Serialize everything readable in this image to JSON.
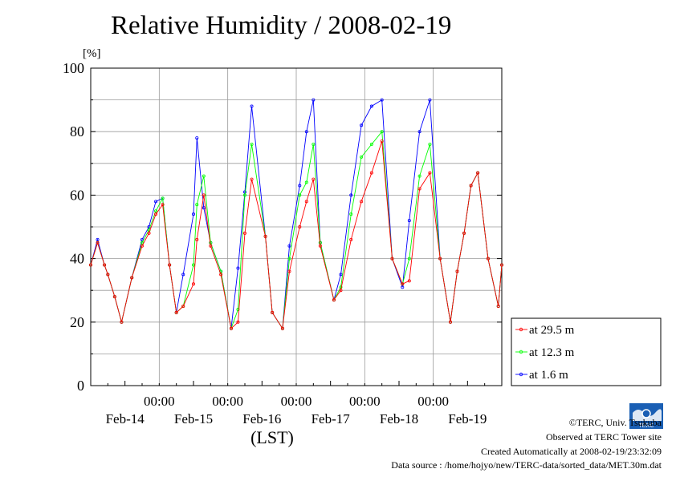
{
  "title": "Relative Humidity / 2008-02-19",
  "footer": {
    "credit": "©TERC, Univ. Tsukuba",
    "observed": "Observed at TERC Tower site",
    "created": "Created Automatically at 2008-02-19/23:32:09",
    "source": "Data source : /home/hojyo/new/TERC-data/sorted_data/MET.30m.dat"
  },
  "logo_text": "TERC",
  "chart_data": {
    "type": "line",
    "title": "Relative Humidity / 2008-02-19",
    "ylabel": "[%]",
    "xlabel": "(LST)",
    "ylim": [
      0,
      100
    ],
    "yticks": [
      0,
      20,
      40,
      60,
      80,
      100
    ],
    "xlim": [
      0,
      6
    ],
    "x_unit": "days since 2008-02-13 12:00",
    "xticks_time": [
      "00:00",
      "00:00",
      "00:00",
      "00:00",
      "00:00"
    ],
    "xticks_time_pos": [
      1,
      2,
      3,
      4,
      5
    ],
    "xticks_date": [
      "Feb-14",
      "Feb-15",
      "Feb-16",
      "Feb-17",
      "Feb-18",
      "Feb-19"
    ],
    "xticks_date_pos": [
      0.5,
      1.5,
      2.5,
      3.5,
      4.5,
      5.5
    ],
    "grid": true,
    "legend": "right",
    "x": [
      0.0,
      0.1,
      0.2,
      0.25,
      0.35,
      0.45,
      0.6,
      0.75,
      0.85,
      0.95,
      1.05,
      1.15,
      1.25,
      1.35,
      1.5,
      1.55,
      1.65,
      1.75,
      1.9,
      2.05,
      2.15,
      2.25,
      2.35,
      2.55,
      2.65,
      2.8,
      2.9,
      3.05,
      3.15,
      3.25,
      3.35,
      3.55,
      3.65,
      3.8,
      3.95,
      4.1,
      4.25,
      4.4,
      4.55,
      4.65,
      4.8,
      4.95,
      5.1,
      5.25,
      5.35,
      5.45,
      5.55,
      5.65,
      5.8,
      5.95,
      6.0
    ],
    "series": [
      {
        "name": "at 29.5 m",
        "color": "#ff0000",
        "values": [
          38,
          45,
          38,
          35,
          28,
          20,
          34,
          44,
          48,
          54,
          57,
          38,
          23,
          25,
          32,
          46,
          60,
          44,
          35,
          18,
          20,
          48,
          65,
          47,
          23,
          18,
          36,
          50,
          58,
          65,
          44,
          27,
          30,
          46,
          58,
          67,
          77,
          40,
          32,
          33,
          62,
          67,
          40,
          20,
          36,
          48,
          63,
          67,
          40,
          25,
          38
        ]
      },
      {
        "name": "at 12.3 m",
        "color": "#00ff00",
        "values": [
          38,
          45,
          38,
          35,
          28,
          20,
          34,
          45,
          49,
          55,
          59,
          38,
          23,
          25,
          38,
          57,
          66,
          45,
          36,
          18,
          24,
          60,
          76,
          47,
          23,
          18,
          40,
          60,
          64,
          76,
          45,
          27,
          31,
          54,
          72,
          76,
          80,
          40,
          32,
          40,
          66,
          76,
          40,
          20,
          36,
          48,
          63,
          67,
          40,
          25,
          38
        ]
      },
      {
        "name": "at 1.6 m",
        "color": "#0000ff",
        "values": [
          38,
          46,
          38,
          35,
          28,
          20,
          34,
          46,
          50,
          58,
          59,
          38,
          23,
          35,
          54,
          78,
          56,
          45,
          36,
          18,
          37,
          61,
          88,
          47,
          23,
          18,
          44,
          63,
          80,
          90,
          45,
          27,
          35,
          60,
          82,
          88,
          90,
          40,
          31,
          52,
          80,
          90,
          40,
          20,
          36,
          48,
          63,
          67,
          40,
          25,
          38
        ]
      }
    ]
  }
}
